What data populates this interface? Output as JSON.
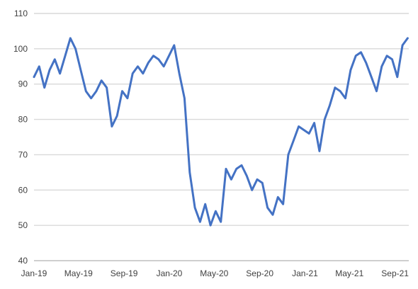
{
  "chart_data": {
    "type": "line",
    "title": "",
    "xlabel": "",
    "ylabel": "",
    "ylim": [
      40,
      110
    ],
    "y_ticks": [
      40,
      50,
      60,
      70,
      80,
      90,
      100,
      110
    ],
    "x_ticks": [
      "Jan-19",
      "May-19",
      "Sep-19",
      "Jan-20",
      "May-20",
      "Sep-20",
      "Jan-21",
      "May-21",
      "Sep-21"
    ],
    "grid": true,
    "legend": "none",
    "colors": {
      "series": "#4472c4",
      "grid": "#d9d9d9",
      "axis": "#bfbfbf",
      "text": "#404040"
    },
    "series": [
      {
        "x": [
          "2019-01-01",
          "2019-01-15",
          "2019-01-29",
          "2019-02-12",
          "2019-02-26",
          "2019-03-12",
          "2019-03-26",
          "2019-04-09",
          "2019-04-23",
          "2019-05-07",
          "2019-05-21",
          "2019-06-04",
          "2019-06-18",
          "2019-07-02",
          "2019-07-16",
          "2019-07-30",
          "2019-08-13",
          "2019-08-27",
          "2019-09-10",
          "2019-09-24",
          "2019-10-08",
          "2019-10-22",
          "2019-11-05",
          "2019-11-19",
          "2019-12-03",
          "2019-12-17",
          "2019-12-31",
          "2020-01-14",
          "2020-01-28",
          "2020-02-11",
          "2020-02-25",
          "2020-03-10",
          "2020-03-24",
          "2020-04-07",
          "2020-04-21",
          "2020-05-05",
          "2020-05-19",
          "2020-06-02",
          "2020-06-16",
          "2020-06-30",
          "2020-07-14",
          "2020-07-28",
          "2020-08-11",
          "2020-08-25",
          "2020-09-08",
          "2020-09-22",
          "2020-10-06",
          "2020-10-20",
          "2020-11-03",
          "2020-11-17",
          "2020-12-01",
          "2020-12-15",
          "2020-12-29",
          "2021-01-12",
          "2021-01-26",
          "2021-02-09",
          "2021-02-23",
          "2021-03-09",
          "2021-03-23",
          "2021-04-06",
          "2021-04-20",
          "2021-05-04",
          "2021-05-18",
          "2021-06-01",
          "2021-06-15",
          "2021-06-29",
          "2021-07-13",
          "2021-07-27",
          "2021-08-10",
          "2021-08-24",
          "2021-09-07",
          "2021-09-21",
          "2021-10-05"
        ],
        "values": [
          92,
          95,
          89,
          94,
          97,
          93,
          98,
          103,
          100,
          94,
          88,
          86,
          88,
          91,
          89,
          78,
          81,
          88,
          86,
          93,
          95,
          93,
          96,
          98,
          97,
          95,
          98,
          101,
          93,
          86,
          65,
          55,
          51,
          56,
          50,
          54,
          51,
          66,
          63,
          66,
          67,
          64,
          60,
          63,
          62,
          55,
          53,
          58,
          56,
          70,
          74,
          78,
          77,
          76,
          79,
          71,
          80,
          84,
          89,
          88,
          86,
          94,
          98,
          99,
          96,
          92,
          88,
          95,
          98,
          97,
          92,
          101,
          103
        ]
      }
    ]
  }
}
